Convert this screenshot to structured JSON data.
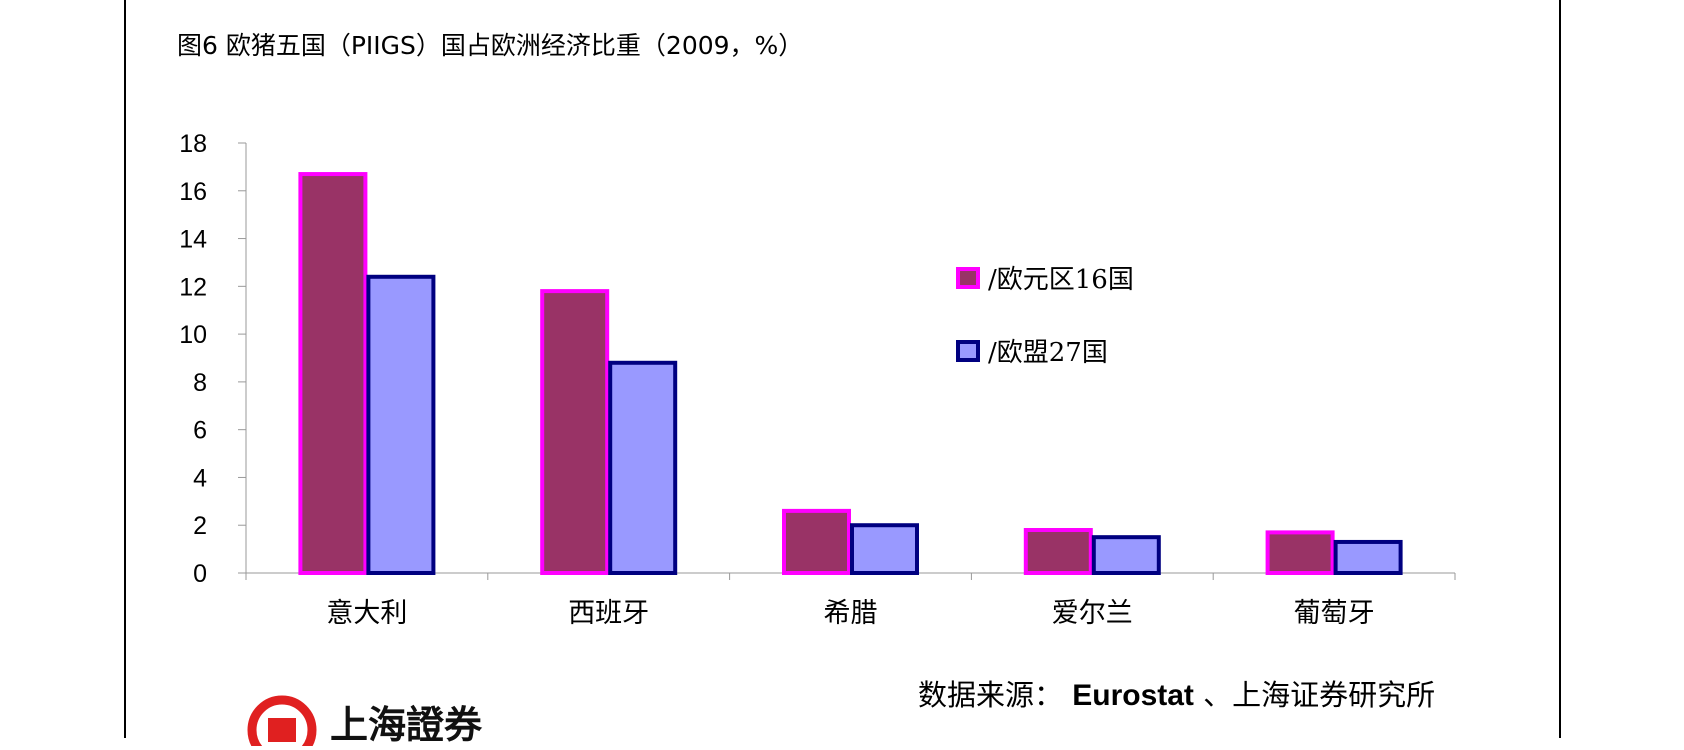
{
  "title": "图6  欧猪五国（PIIGS）国占欧洲经济比重（2009，%）",
  "chart_data": {
    "type": "bar",
    "title": "图6  欧猪五国（PIIGS）国占欧洲经济比重（2009，%）",
    "categories": [
      "意大利",
      "西班牙",
      "希腊",
      "爱尔兰",
      "葡萄牙"
    ],
    "series": [
      {
        "name": "/欧元区16国",
        "values": [
          16.7,
          11.8,
          2.6,
          1.8,
          1.7
        ],
        "fill": "#993366",
        "stroke": "#ff00ff"
      },
      {
        "name": "/欧盟27国",
        "values": [
          12.4,
          8.8,
          2.0,
          1.5,
          1.3
        ],
        "fill": "#9999ff",
        "stroke": "#000080"
      }
    ],
    "ylim": [
      0,
      18
    ],
    "yticks": [
      0,
      2,
      4,
      6,
      8,
      10,
      12,
      14,
      16,
      18
    ],
    "ytick_labels": [
      "0",
      "2",
      "4",
      "6",
      "8",
      "10",
      "12",
      "14",
      "16",
      "18"
    ],
    "xlabel": "",
    "ylabel": "",
    "grid": false,
    "legend_position": "right"
  },
  "source": {
    "prefix": "数据来源：",
    "name": "Eurostat",
    "suffix": "、上海证券研究所"
  },
  "logo": {
    "text": "上海證券"
  }
}
